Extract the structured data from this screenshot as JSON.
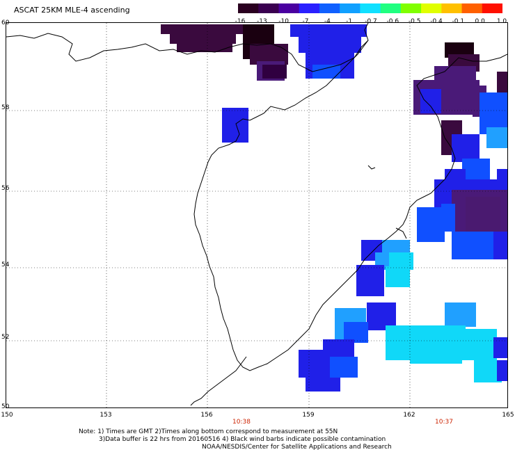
{
  "title": "ASCAT 25KM MLE-4 ascending",
  "colorbar": {
    "labels": [
      "-16",
      "-13",
      "-10",
      "-7",
      "-4",
      "-1",
      "-0.7",
      "-0.6",
      "-0.5",
      "-0.4",
      "-0.1",
      "0.0",
      "1.0"
    ],
    "colors": [
      "#2a0020",
      "#3a0050",
      "#4a00a0",
      "#2a20ff",
      "#1060ff",
      "#10a0ff",
      "#10e0ff",
      "#20ff80",
      "#80ff00",
      "#e0ff00",
      "#ffc000",
      "#ff6000",
      "#ff1000"
    ]
  },
  "map": {
    "lat_labels": [
      "60",
      "58",
      "56",
      "54",
      "52",
      "50"
    ],
    "lon_labels": [
      "150",
      "153",
      "156",
      "159",
      "162",
      "165"
    ],
    "time_labels": [
      "10:38",
      "10:37"
    ],
    "colors": {
      "deep_purple": "#3a0a3e",
      "purple": "#4a1a78",
      "violet": "#5a10c0",
      "blue": "#2020e8",
      "mid_blue": "#1050ff",
      "light_blue": "#20a0ff",
      "cyan": "#10d8f8"
    }
  },
  "notes": {
    "line1": "Note: 1) Times are GMT 2)Times along bottom correspond to measurement at 55N",
    "line2": "3)Data buffer is 22 hrs from 20160516 4) Black wind barbs indicate possible contamination",
    "line3": "NOAA/NESDIS/Center for Satellite Applications and Research"
  }
}
